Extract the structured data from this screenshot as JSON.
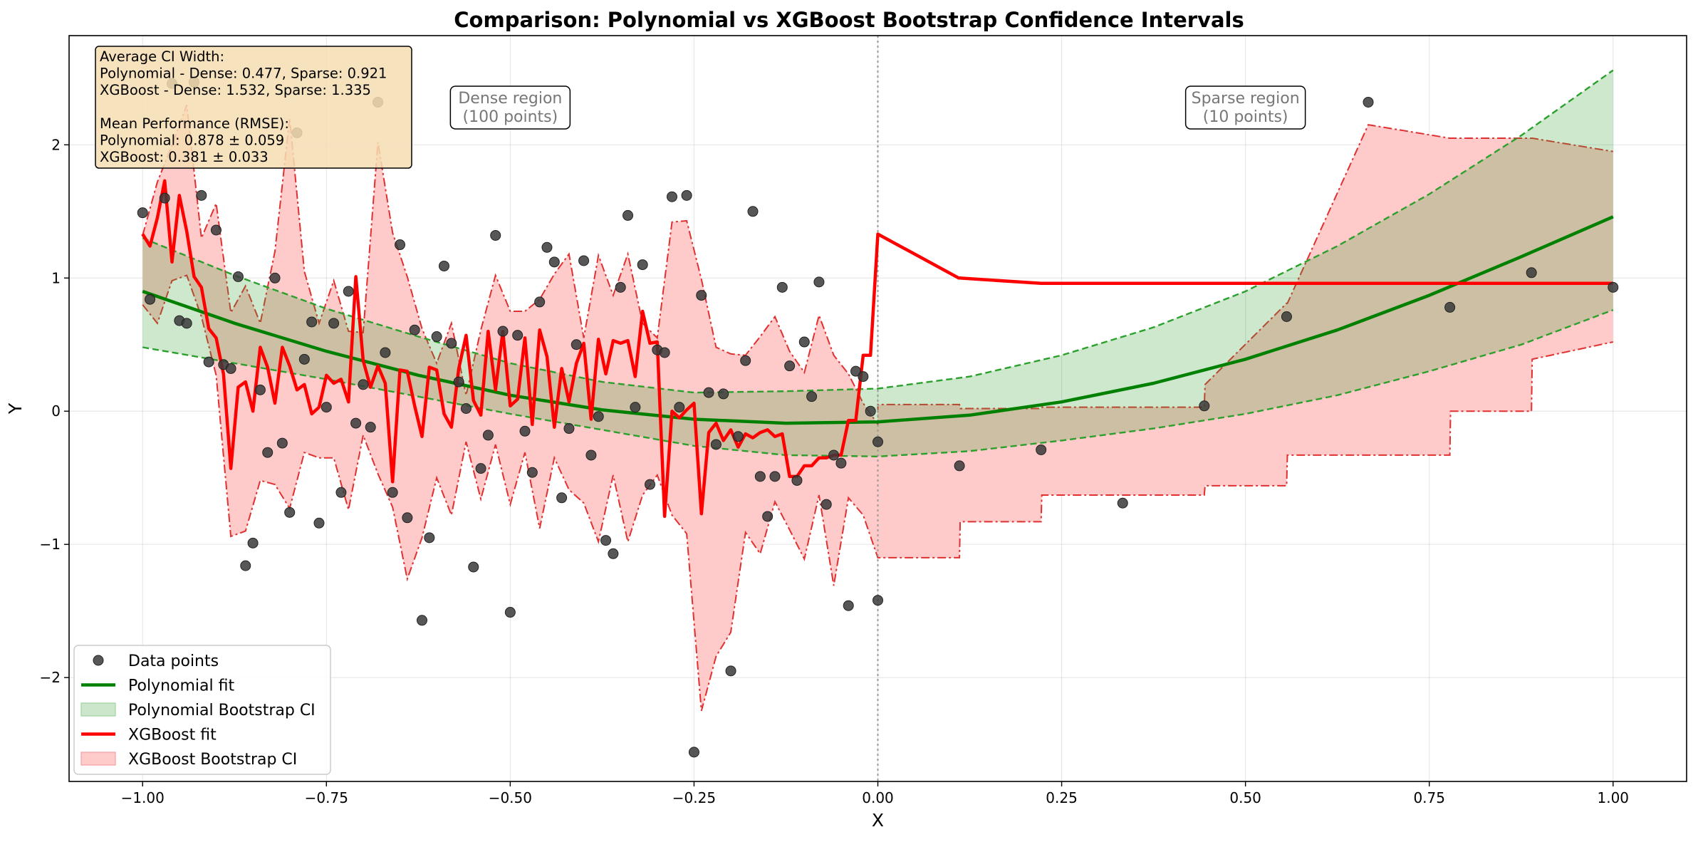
{
  "chart_data": {
    "type": "line",
    "title": "Comparison: Polynomial vs XGBoost Bootstrap Confidence Intervals",
    "xlabel": "X",
    "ylabel": "Y",
    "xlim": [
      -1.1,
      1.1
    ],
    "ylim": [
      -2.78,
      2.82
    ],
    "grid": true,
    "legend_position": "lower-left",
    "x_ticks": [
      -1.0,
      -0.75,
      -0.5,
      -0.25,
      0.0,
      0.25,
      0.5,
      0.75,
      1.0
    ],
    "x_tick_labels": [
      "−1.00",
      "−0.75",
      "−0.50",
      "−0.25",
      "0.00",
      "0.25",
      "0.50",
      "0.75",
      "1.00"
    ],
    "y_ticks": [
      -2,
      -1,
      0,
      1,
      2
    ],
    "y_tick_labels": [
      "−2",
      "−1",
      "0",
      "1",
      "2"
    ],
    "divider_x": 0.0,
    "stats_box": {
      "lines": [
        "Average CI Width:",
        "Polynomial - Dense: 0.477, Sparse: 0.921",
        "XGBoost - Dense: 1.532, Sparse: 1.335",
        "",
        "Mean Performance (RMSE):",
        "Polynomial: 0.878 ± 0.059",
        "XGBoost: 0.381 ± 0.033"
      ]
    },
    "annotations": [
      {
        "x": -0.5,
        "y": 2.28,
        "lines": [
          "Dense region",
          "(100 points)"
        ]
      },
      {
        "x": 0.5,
        "y": 2.28,
        "lines": [
          "Sparse region",
          "(10 points)"
        ]
      }
    ],
    "colors": {
      "points": "#3a3a3a",
      "poly": "#008000",
      "poly_ci_fill": "#cbe6cb",
      "poly_ci_edge": "#2ca02c",
      "xgb": "#ff0000",
      "xgb_ci_fill": "#ffcaca",
      "xgb_ci_edge": "#e03030"
    },
    "legend": [
      {
        "label": "Data points",
        "kind": "marker"
      },
      {
        "label": "Polynomial fit",
        "kind": "poly-line"
      },
      {
        "label": "Polynomial Bootstrap CI",
        "kind": "poly-patch"
      },
      {
        "label": "XGBoost fit",
        "kind": "xgb-line"
      },
      {
        "label": "XGBoost Bootstrap CI",
        "kind": "xgb-patch"
      }
    ],
    "series": [
      {
        "name": "Data points",
        "kind": "scatter",
        "x": [
          -1.0,
          -0.99,
          -0.97,
          -0.96,
          -0.95,
          -0.94,
          -0.93,
          -0.92,
          -0.91,
          -0.9,
          -0.89,
          -0.88,
          -0.87,
          -0.86,
          -0.85,
          -0.84,
          -0.83,
          -0.82,
          -0.81,
          -0.8,
          -0.79,
          -0.78,
          -0.77,
          -0.76,
          -0.75,
          -0.74,
          -0.73,
          -0.72,
          -0.71,
          -0.7,
          -0.69,
          -0.68,
          -0.67,
          -0.66,
          -0.65,
          -0.64,
          -0.63,
          -0.62,
          -0.61,
          -0.6,
          -0.59,
          -0.58,
          -0.57,
          -0.56,
          -0.55,
          -0.54,
          -0.53,
          -0.52,
          -0.51,
          -0.5,
          -0.49,
          -0.48,
          -0.47,
          -0.46,
          -0.45,
          -0.44,
          -0.43,
          -0.42,
          -0.41,
          -0.4,
          -0.39,
          -0.38,
          -0.37,
          -0.36,
          -0.35,
          -0.34,
          -0.33,
          -0.32,
          -0.31,
          -0.3,
          -0.29,
          -0.28,
          -0.27,
          -0.26,
          -0.25,
          -0.24,
          -0.23,
          -0.22,
          -0.21,
          -0.2,
          -0.19,
          -0.18,
          -0.17,
          -0.16,
          -0.15,
          -0.14,
          -0.13,
          -0.12,
          -0.11,
          -0.1,
          -0.09,
          -0.08,
          -0.07,
          -0.06,
          -0.05,
          -0.04,
          -0.03,
          -0.02,
          -0.01,
          0.0,
          0.0,
          0.111,
          0.222,
          0.333,
          0.444,
          0.556,
          0.667,
          0.778,
          0.889,
          1.0
        ],
        "y": [
          1.49,
          0.84,
          1.6,
          2.46,
          0.68,
          0.66,
          2.47,
          1.62,
          0.37,
          1.36,
          0.35,
          0.32,
          1.01,
          -1.16,
          -0.99,
          0.16,
          -0.31,
          1.0,
          -0.24,
          -0.76,
          2.09,
          0.39,
          0.67,
          -0.84,
          0.03,
          0.66,
          -0.61,
          0.9,
          -0.09,
          0.2,
          -0.12,
          2.32,
          0.44,
          -0.61,
          1.25,
          -0.8,
          0.61,
          -1.57,
          -0.95,
          0.56,
          1.09,
          0.51,
          0.22,
          0.02,
          -1.17,
          -0.43,
          -0.18,
          1.32,
          0.6,
          -1.51,
          0.57,
          -0.15,
          -0.46,
          0.82,
          1.23,
          1.12,
          -0.65,
          -0.13,
          0.5,
          1.13,
          -0.33,
          -0.04,
          -0.97,
          -1.07,
          0.93,
          1.47,
          0.03,
          1.1,
          -0.55,
          0.46,
          0.44,
          1.61,
          0.03,
          1.62,
          -2.56,
          0.87,
          0.14,
          -0.25,
          0.13,
          -1.95,
          -0.19,
          0.38,
          1.5,
          -0.49,
          -0.79,
          -0.49,
          0.93,
          0.34,
          -0.52,
          0.52,
          0.11,
          0.97,
          -0.7,
          -0.33,
          -0.39,
          -1.46,
          0.3,
          0.26,
          0.0,
          -0.23,
          -1.42,
          -0.41,
          -0.29,
          -0.69,
          0.04,
          0.71,
          2.32,
          0.78,
          1.04,
          0.93
        ]
      },
      {
        "name": "Polynomial fit",
        "kind": "curve",
        "x": [
          -1.0,
          -0.875,
          -0.75,
          -0.625,
          -0.5,
          -0.375,
          -0.25,
          -0.125,
          0.0,
          0.125,
          0.25,
          0.375,
          0.5,
          0.625,
          0.75,
          0.875,
          1.0
        ],
        "y": [
          0.9,
          0.66,
          0.45,
          0.27,
          0.12,
          0.01,
          -0.06,
          -0.09,
          -0.08,
          -0.03,
          0.07,
          0.21,
          0.39,
          0.61,
          0.87,
          1.16,
          1.46
        ]
      },
      {
        "name": "Polynomial Bootstrap CI",
        "kind": "band",
        "x": [
          -1.0,
          -0.875,
          -0.75,
          -0.625,
          -0.5,
          -0.375,
          -0.25,
          -0.125,
          0.0,
          0.125,
          0.25,
          0.375,
          0.5,
          0.625,
          0.75,
          0.875,
          1.0
        ],
        "lower": [
          0.48,
          0.36,
          0.24,
          0.11,
          -0.02,
          -0.14,
          -0.26,
          -0.33,
          -0.34,
          -0.3,
          -0.22,
          -0.13,
          -0.02,
          0.12,
          0.3,
          0.5,
          0.76
        ],
        "upper": [
          1.3,
          1.02,
          0.77,
          0.56,
          0.36,
          0.22,
          0.14,
          0.15,
          0.17,
          0.26,
          0.42,
          0.63,
          0.9,
          1.24,
          1.63,
          2.07,
          2.56
        ]
      },
      {
        "name": "XGBoost fit",
        "kind": "line",
        "x": [
          -1.0,
          -0.99,
          -0.98,
          -0.97,
          -0.96,
          -0.95,
          -0.94,
          -0.93,
          -0.92,
          -0.91,
          -0.9,
          -0.89,
          -0.88,
          -0.87,
          -0.86,
          -0.85,
          -0.84,
          -0.83,
          -0.82,
          -0.81,
          -0.8,
          -0.79,
          -0.78,
          -0.77,
          -0.76,
          -0.75,
          -0.74,
          -0.73,
          -0.72,
          -0.71,
          -0.7,
          -0.69,
          -0.68,
          -0.67,
          -0.66,
          -0.65,
          -0.64,
          -0.63,
          -0.62,
          -0.61,
          -0.6,
          -0.59,
          -0.58,
          -0.57,
          -0.56,
          -0.55,
          -0.54,
          -0.53,
          -0.52,
          -0.51,
          -0.5,
          -0.49,
          -0.48,
          -0.47,
          -0.46,
          -0.45,
          -0.44,
          -0.43,
          -0.42,
          -0.41,
          -0.4,
          -0.39,
          -0.38,
          -0.37,
          -0.36,
          -0.35,
          -0.34,
          -0.33,
          -0.32,
          -0.31,
          -0.3,
          -0.29,
          -0.28,
          -0.27,
          -0.26,
          -0.25,
          -0.24,
          -0.23,
          -0.22,
          -0.21,
          -0.2,
          -0.19,
          -0.18,
          -0.17,
          -0.16,
          -0.15,
          -0.14,
          -0.13,
          -0.12,
          -0.11,
          -0.1,
          -0.09,
          -0.08,
          -0.07,
          -0.06,
          -0.05,
          -0.04,
          -0.03,
          -0.02,
          -0.01,
          0.0,
          0.0,
          0.11,
          0.111,
          0.222,
          0.223,
          0.333,
          0.334,
          0.444,
          0.445,
          0.556,
          0.557,
          0.667,
          0.668,
          0.778,
          0.779,
          0.889,
          0.89,
          1.0
        ],
        "y": [
          1.33,
          1.24,
          1.45,
          1.73,
          1.12,
          1.62,
          1.35,
          1.01,
          0.93,
          0.62,
          0.55,
          0.28,
          -0.43,
          0.18,
          0.22,
          0.0,
          0.48,
          0.33,
          0.06,
          0.48,
          0.34,
          0.16,
          0.2,
          -0.02,
          0.03,
          0.27,
          0.21,
          0.24,
          0.07,
          1.01,
          0.38,
          0.18,
          0.34,
          0.21,
          -0.53,
          0.31,
          0.3,
          0.04,
          -0.19,
          0.33,
          0.31,
          -0.02,
          -0.12,
          0.32,
          0.57,
          0.08,
          -0.03,
          0.6,
          0.16,
          0.6,
          0.04,
          0.09,
          0.55,
          -0.1,
          0.61,
          0.41,
          -0.12,
          0.32,
          0.07,
          0.36,
          0.51,
          -0.06,
          0.54,
          0.28,
          0.53,
          0.51,
          0.53,
          0.26,
          0.75,
          0.51,
          0.52,
          -0.79,
          0.0,
          -0.05,
          0.01,
          0.06,
          -0.77,
          -0.16,
          -0.09,
          -0.22,
          -0.14,
          -0.27,
          -0.17,
          -0.2,
          -0.16,
          -0.14,
          -0.19,
          -0.17,
          -0.49,
          -0.49,
          -0.41,
          -0.41,
          -0.35,
          -0.35,
          -0.33,
          -0.33,
          -0.07,
          -0.07,
          0.42,
          0.42,
          1.33,
          1.33,
          1.0,
          1.0,
          0.96,
          0.96,
          0.96,
          0.96,
          0.96,
          0.96,
          0.96,
          0.96,
          0.96,
          0.96,
          0.96,
          0.96,
          0.96,
          0.96,
          0.96
        ],
        "note_fix": "sparse steps"
      },
      {
        "name": "XGBoost Bootstrap CI",
        "kind": "band",
        "x": [
          -1.0,
          -0.98,
          -0.96,
          -0.94,
          -0.92,
          -0.9,
          -0.88,
          -0.86,
          -0.84,
          -0.82,
          -0.8,
          -0.78,
          -0.76,
          -0.74,
          -0.72,
          -0.7,
          -0.68,
          -0.66,
          -0.64,
          -0.62,
          -0.6,
          -0.58,
          -0.56,
          -0.54,
          -0.52,
          -0.5,
          -0.48,
          -0.46,
          -0.44,
          -0.42,
          -0.4,
          -0.38,
          -0.36,
          -0.34,
          -0.32,
          -0.3,
          -0.28,
          -0.26,
          -0.24,
          -0.22,
          -0.2,
          -0.18,
          -0.16,
          -0.14,
          -0.12,
          -0.1,
          -0.08,
          -0.06,
          -0.04,
          -0.02,
          0.0,
          0.0,
          0.111,
          0.112,
          0.222,
          0.223,
          0.333,
          0.334,
          0.444,
          0.445,
          0.556,
          0.557,
          0.667,
          0.668,
          0.778,
          0.779,
          0.889,
          0.89,
          1.0
        ],
        "lower": [
          0.8,
          0.66,
          0.98,
          1.02,
          0.71,
          0.27,
          -0.94,
          -0.9,
          -0.52,
          -0.55,
          -0.73,
          -0.31,
          -0.35,
          -0.35,
          -0.74,
          -0.18,
          -0.47,
          -0.72,
          -1.26,
          -0.95,
          -0.5,
          -0.78,
          -0.23,
          -0.66,
          -0.25,
          -0.7,
          -0.31,
          -0.88,
          -0.35,
          -0.59,
          -0.69,
          -0.98,
          -0.48,
          -0.98,
          -0.63,
          -0.48,
          -0.78,
          -0.92,
          -2.25,
          -1.84,
          -1.66,
          -0.91,
          -1.07,
          -0.68,
          -0.89,
          -1.11,
          -0.63,
          -1.31,
          -0.65,
          -0.78,
          -1.1,
          -1.1,
          -1.1,
          -0.83,
          -0.83,
          -0.63,
          -0.63,
          -0.63,
          -0.63,
          -0.56,
          -0.56,
          -0.33,
          -0.33,
          -0.33,
          -0.33,
          0.0,
          0.0,
          0.39,
          0.52
        ],
        "upper": [
          1.32,
          1.72,
          2.0,
          2.3,
          1.3,
          1.56,
          0.74,
          0.94,
          0.66,
          1.2,
          2.2,
          1.05,
          0.66,
          0.98,
          0.6,
          0.59,
          2.02,
          1.34,
          1.01,
          0.62,
          0.36,
          0.66,
          0.12,
          0.61,
          1.02,
          0.75,
          0.75,
          0.84,
          1.03,
          1.18,
          0.55,
          1.17,
          0.87,
          1.18,
          0.66,
          0.55,
          1.42,
          1.43,
          0.99,
          0.48,
          0.43,
          0.42,
          0.56,
          0.71,
          0.45,
          0.29,
          0.72,
          0.42,
          0.28,
          0.06,
          -0.1,
          0.05,
          0.05,
          0.02,
          0.02,
          0.03,
          0.03,
          0.03,
          0.03,
          0.2,
          0.81,
          0.81,
          2.15,
          2.15,
          2.05,
          2.05,
          2.05,
          2.05,
          1.95
        ]
      }
    ]
  }
}
